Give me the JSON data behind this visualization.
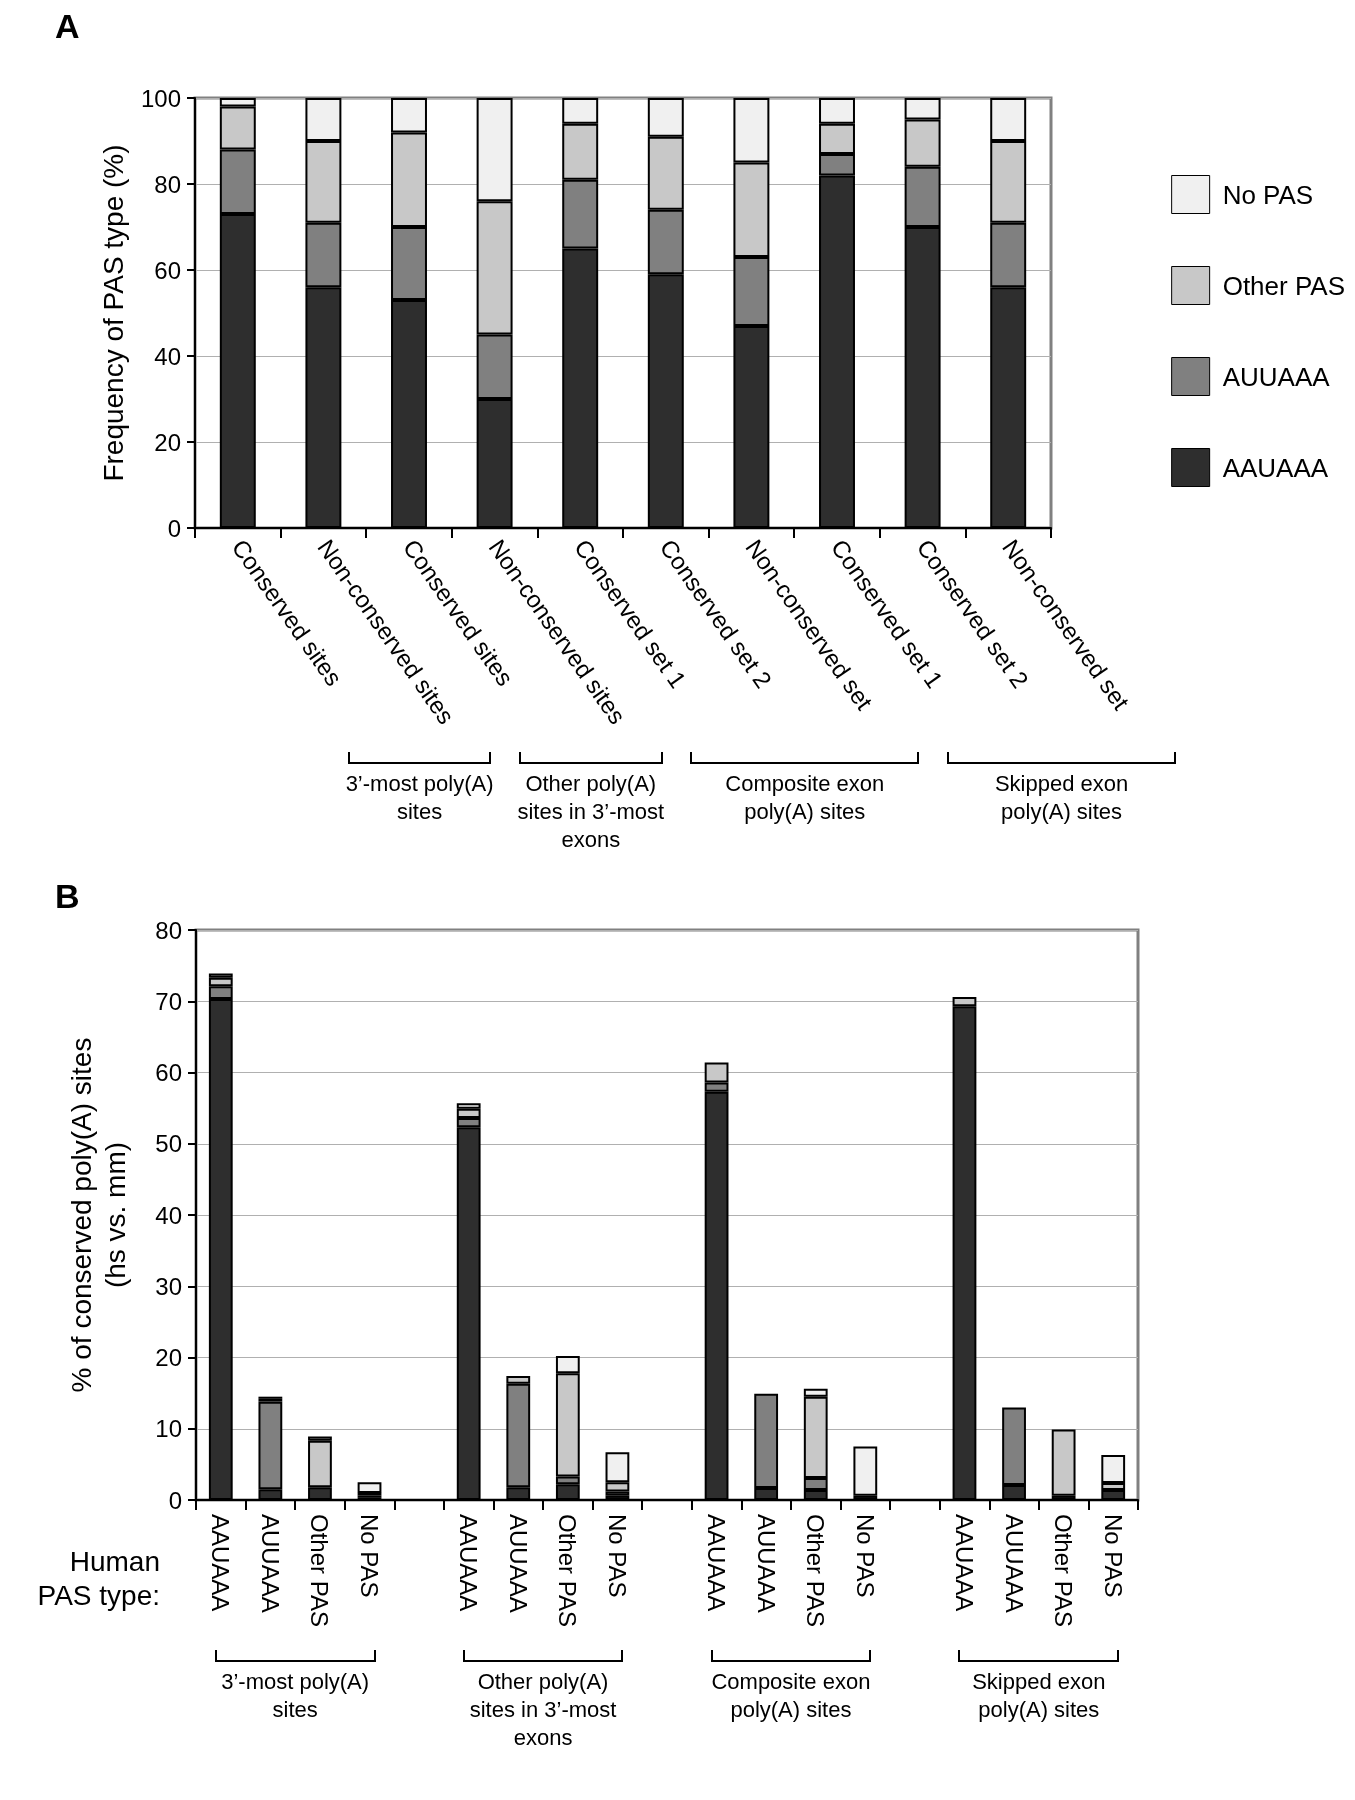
{
  "chart_data": [
    {
      "type": "bar",
      "title": "A",
      "ylabel": "Frequency of PAS type (%)",
      "categories": [
        "Conserved sites",
        "Non-conserved sites",
        "Conserved sites",
        "Non-conserved sites",
        "Conserved set 1",
        "Conserved set 2",
        "Non-conserved set",
        "Conserved set 1",
        "Conserved set 2",
        "Non-conserved set"
      ],
      "series": [
        {
          "name": "AAUAAA",
          "color": "#2e2e2e",
          "values": [
            73,
            56,
            53,
            30,
            65,
            59,
            47,
            82,
            70,
            56
          ]
        },
        {
          "name": "AUUAAA",
          "color": "#808080",
          "values": [
            15,
            15,
            17,
            15,
            16,
            15,
            16,
            5,
            14,
            15
          ]
        },
        {
          "name": "Other PAS",
          "color": "#c8c8c8",
          "values": [
            10,
            19,
            22,
            31,
            13,
            17,
            22,
            7,
            11,
            19
          ]
        },
        {
          "name": "No PAS",
          "color": "#f0f0f0",
          "values": [
            2,
            10,
            8,
            24,
            6,
            9,
            15,
            6,
            5,
            10
          ]
        }
      ],
      "stacked": true,
      "ylim": [
        0,
        100
      ],
      "yticks": [
        0,
        20,
        40,
        60,
        80,
        100
      ],
      "grid": "y",
      "legend": "right",
      "annotations": [
        "3’-most poly(A) sites",
        "Other poly(A) sites in 3’-most exons",
        "Composite exon poly(A) sites",
        "Skipped exon poly(A) sites"
      ]
    },
    {
      "type": "bar",
      "title": "B",
      "ylabel": "% of conserved poly(A) sites\n(hs vs. mm)",
      "xlabel": "Human PAS type:",
      "categories": [
        "AAUAAA",
        "AUUAAA",
        "Other PAS",
        "No PAS",
        null,
        "AAUAAA",
        "AUUAAA",
        "Other PAS",
        "No PAS",
        null,
        "AAUAAA",
        "AUUAAA",
        "Other PAS",
        "No PAS",
        null,
        "AAUAAA",
        "AUUAAA",
        "Other PAS",
        "No PAS"
      ],
      "series": [
        {
          "color": "#2e2e2e",
          "values": [
            70.3,
            1.5,
            1.8,
            0.3,
            null,
            52.3,
            1.8,
            2.2,
            0.6,
            null,
            57.3,
            1.7,
            1.4,
            0.6,
            null,
            69.3,
            2.1,
            0.6,
            1.4
          ]
        },
        {
          "color": "#808080",
          "values": [
            1.8,
            12.3,
            null,
            0.3,
            null,
            1.3,
            14.5,
            1.1,
            0.6,
            null,
            1.3,
            13.2,
            1.7,
            null,
            null,
            null,
            10.9,
            null,
            null
          ]
        },
        {
          "color": "#c8c8c8",
          "values": [
            1.2,
            0.4,
            6.5,
            0.4,
            null,
            1.3,
            1.1,
            14.5,
            1.3,
            null,
            2.8,
            null,
            11.4,
            null,
            null,
            1.3,
            null,
            9.3,
            1.0
          ]
        },
        {
          "color": "#f0f0f0",
          "values": [
            0.6,
            0.3,
            0.6,
            1.5,
            null,
            0.8,
            null,
            2.4,
            4.2,
            null,
            null,
            null,
            1.1,
            6.9,
            null,
            null,
            null,
            null,
            3.9
          ]
        }
      ],
      "stacked": true,
      "ylim": [
        0,
        80
      ],
      "yticks": [
        0,
        10,
        20,
        30,
        40,
        50,
        60,
        70,
        80
      ],
      "grid": "y",
      "annotations": [
        "3’-most poly(A) sites",
        "Other poly(A) sites in 3’-most exons",
        "Composite exon poly(A) sites",
        "Skipped exon poly(A) sites"
      ]
    }
  ]
}
